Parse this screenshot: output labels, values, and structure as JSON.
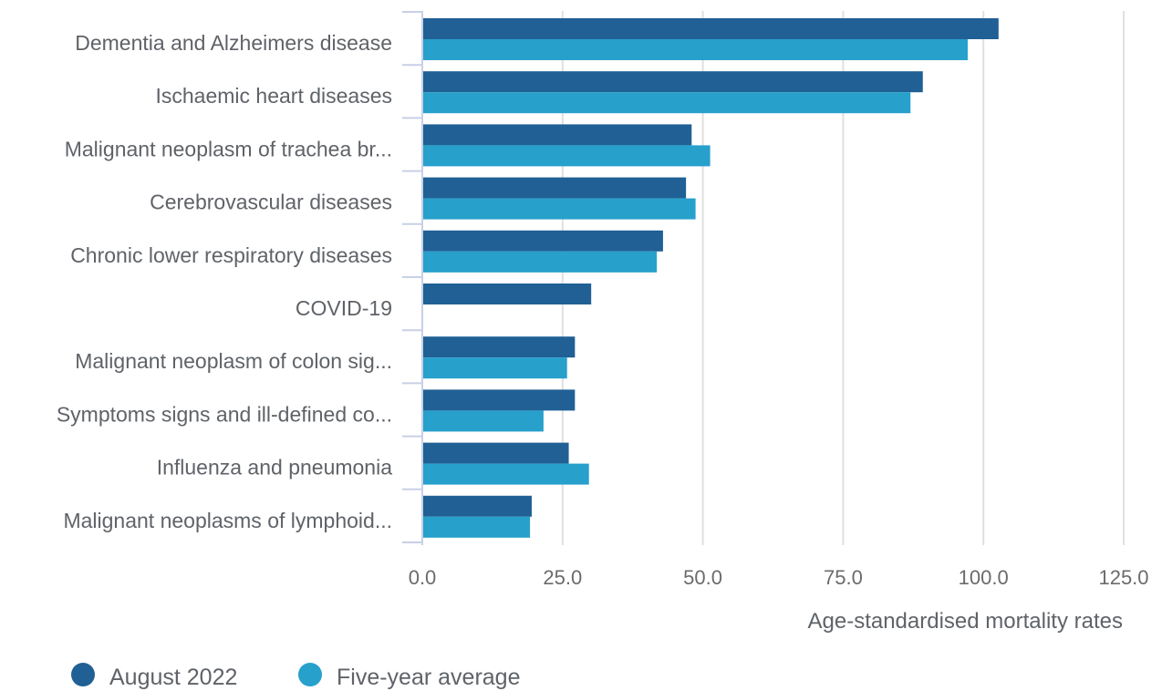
{
  "colors": {
    "series_1": "#206095",
    "series_2": "#27a0cc",
    "gridline": "#e0e0e0",
    "axis": "#c8d0e6",
    "text": "#5f6368"
  },
  "chart_data": {
    "type": "bar",
    "orientation": "horizontal",
    "categories": [
      "Dementia and Alzheimers disease",
      "Ischaemic heart diseases",
      "Malignant neoplasm of trachea br...",
      "Cerebrovascular diseases",
      "Chronic lower respiratory diseases",
      "COVID-19",
      "Malignant neoplasm of colon sig...",
      "Symptoms signs and ill-defined co...",
      "Influenza and pneumonia",
      "Malignant neoplasms of lymphoid..."
    ],
    "series": [
      {
        "name": "August 2022",
        "values": [
          102.7,
          89.2,
          48.0,
          47.0,
          42.9,
          30.1,
          27.2,
          27.2,
          26.1,
          19.5
        ]
      },
      {
        "name": "Five-year average",
        "values": [
          97.2,
          87.0,
          51.3,
          48.7,
          41.8,
          null,
          25.8,
          21.6,
          29.7,
          19.2
        ]
      }
    ],
    "x_ticks": [
      "0.0",
      "25.0",
      "50.0",
      "75.0",
      "100.0",
      "125.0"
    ],
    "xlabel": "Age-standardised mortality rates",
    "ylabel": "",
    "title": "",
    "xlim": [
      0,
      125
    ],
    "grid": "vertical",
    "legend_position": "bottom-left"
  }
}
